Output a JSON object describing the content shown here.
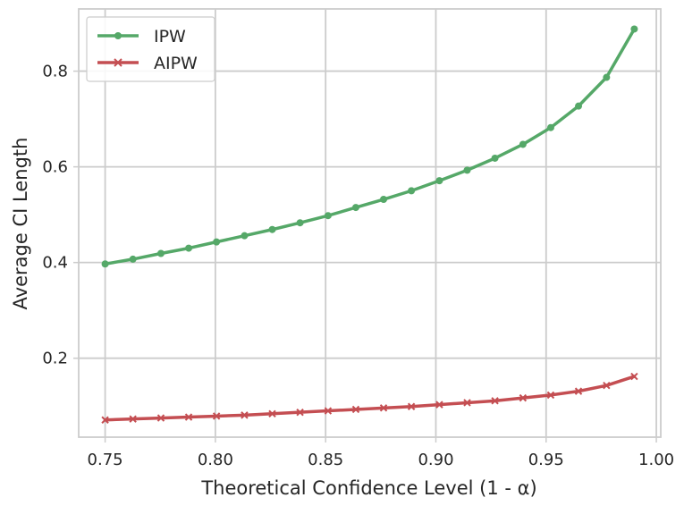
{
  "chart_data": {
    "type": "line",
    "xlabel": "Theoretical Confidence Level (1 - α)",
    "ylabel": "Average CI Length",
    "xlim": [
      0.738,
      1.002
    ],
    "ylim": [
      0.035,
      0.93
    ],
    "xticks": [
      0.75,
      0.8,
      0.85,
      0.9,
      0.95,
      1.0
    ],
    "xtick_labels": [
      "0.75",
      "0.80",
      "0.85",
      "0.90",
      "0.95",
      "1.00"
    ],
    "yticks": [
      0.2,
      0.4,
      0.6,
      0.8
    ],
    "ytick_labels": [
      "0.2",
      "0.4",
      "0.6",
      "0.8"
    ],
    "grid": true,
    "legend_position": "top-left",
    "x": [
      0.75,
      0.7626,
      0.7753,
      0.7879,
      0.8005,
      0.8132,
      0.8258,
      0.8384,
      0.8511,
      0.8637,
      0.8763,
      0.8889,
      0.9016,
      0.9142,
      0.9268,
      0.9395,
      0.9521,
      0.9647,
      0.9774,
      0.99
    ],
    "series": [
      {
        "name": "IPW",
        "color": "#55a868",
        "marker": "circle",
        "values": [
          0.397,
          0.407,
          0.419,
          0.43,
          0.443,
          0.456,
          0.469,
          0.483,
          0.498,
          0.515,
          0.532,
          0.55,
          0.571,
          0.593,
          0.618,
          0.647,
          0.682,
          0.727,
          0.787,
          0.888
        ]
      },
      {
        "name": "AIPW",
        "color": "#c44e52",
        "marker": "x",
        "values": [
          0.071,
          0.073,
          0.075,
          0.077,
          0.079,
          0.081,
          0.084,
          0.087,
          0.09,
          0.093,
          0.096,
          0.099,
          0.103,
          0.107,
          0.111,
          0.117,
          0.123,
          0.131,
          0.143,
          0.162
        ]
      }
    ]
  }
}
